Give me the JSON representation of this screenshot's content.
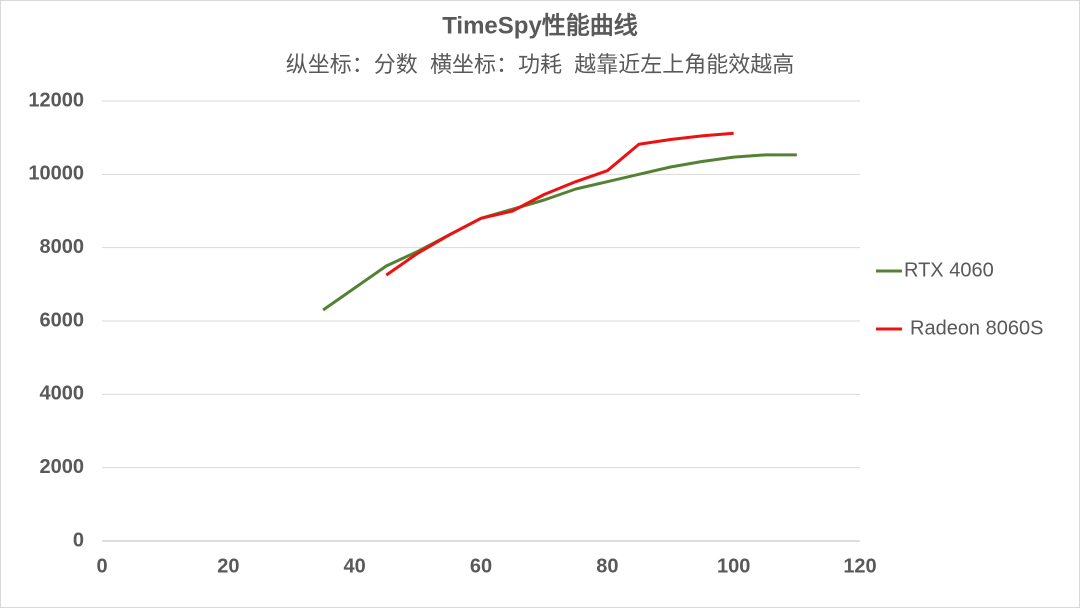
{
  "chart_data": {
    "type": "line",
    "title": "TimeSpy性能曲线",
    "subtitle": "纵坐标：分数  横坐标：功耗  越靠近左上角能效越高",
    "x": [
      35,
      40,
      45,
      50,
      55,
      60,
      65,
      70,
      75,
      80,
      85,
      90,
      95,
      100,
      105,
      110
    ],
    "series": [
      {
        "name": "RTX 4060",
        "color": "#548235",
        "values": [
          6300,
          6900,
          7500,
          7900,
          8350,
          8800,
          9050,
          9300,
          9600,
          9800,
          10000,
          10200,
          10350,
          10470,
          10530,
          10530
        ]
      },
      {
        "name": "Radeon 8060S",
        "color": "#ee1111",
        "values": [
          null,
          null,
          7250,
          7850,
          8350,
          8800,
          9000,
          9450,
          9800,
          10100,
          10820,
          10950,
          11050,
          11120,
          null,
          null
        ]
      }
    ],
    "xlim": [
      0,
      120
    ],
    "xticks": [
      0,
      20,
      40,
      60,
      80,
      100,
      120
    ],
    "ylim": [
      0,
      12000
    ],
    "yticks": [
      0,
      2000,
      4000,
      6000,
      8000,
      10000,
      12000
    ],
    "grid": true,
    "legend": "right"
  }
}
